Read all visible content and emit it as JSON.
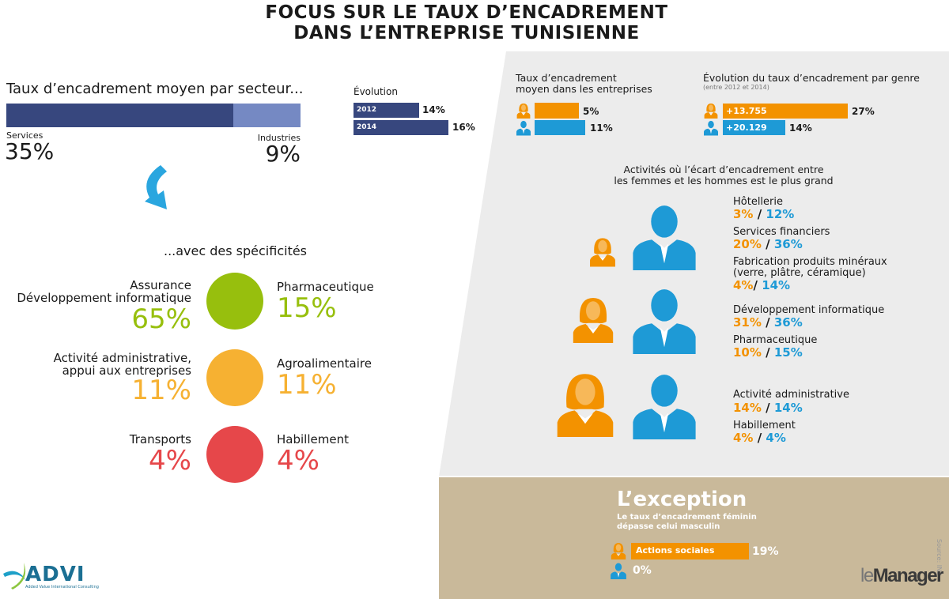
{
  "title": {
    "line1": "FOCUS SUR LE TAUX D’ENCADREMENT",
    "line2": "DANS L’ENTREPRISE TUNISIENNE"
  },
  "colors": {
    "navy": "#37477e",
    "light_navy": "#7589c3",
    "female": "#f39200",
    "male": "#1e9ad6",
    "green": "#97bf0d",
    "yellow": "#f6b132",
    "red": "#e6474a",
    "panel": "#ececec",
    "exception_bg": "#c9b99a"
  },
  "sector": {
    "heading": "Taux d’encadrement moyen par secteur...",
    "services_label": "Services",
    "services_value": "35%",
    "industries_label": "Industries",
    "industries_value": "9%"
  },
  "evolution": {
    "heading": "Évolution",
    "rows": [
      {
        "year": "2012",
        "value": "14%"
      },
      {
        "year": "2014",
        "value": "16%"
      }
    ]
  },
  "specifics": {
    "heading": "...avec des spécificités",
    "rows": [
      {
        "left_label": "Assurance\nDéveloppement informatique",
        "left_value": "65%",
        "right_label": "Pharmaceutique",
        "right_value": "15%",
        "color": "#97bf0d"
      },
      {
        "left_label": "Activité administrative,\nappui aux entreprises",
        "left_value": "11%",
        "right_label": "Agroalimentaire",
        "right_value": "11%",
        "color": "#f6b132"
      },
      {
        "left_label": "Transports",
        "left_value": "4%",
        "right_label": "Habillement",
        "right_value": "4%",
        "color": "#e6474a"
      }
    ]
  },
  "average": {
    "heading": "Taux d’encadrement\nmoyen dans les entreprises",
    "female": "5%",
    "male": "11%"
  },
  "gender_evolution": {
    "heading": "Évolution du taux d’encadrement par genre",
    "subheading": "(entre 2012 et 2014)",
    "female_delta": "+13.755",
    "female_pct": "27%",
    "male_delta": "+20.129",
    "male_pct": "14%"
  },
  "gap": {
    "heading": "Activités où l’écart d’encadrement entre\nles femmes et les hommes est le plus grand",
    "sep": "/",
    "items": [
      {
        "label": "Hôtellerie",
        "female": "3%",
        "male": "12%"
      },
      {
        "label": "Services financiers",
        "female": "20%",
        "male": "36%"
      },
      {
        "label": "Fabrication produits minéraux\n(verre, plâtre, céramique)",
        "female": "4%",
        "male": "14%"
      },
      {
        "label": "Développement informatique",
        "female": "31%",
        "male": "36%"
      },
      {
        "label": "Pharmaceutique",
        "female": "10%",
        "male": "15%"
      },
      {
        "label": "Activité administrative",
        "female": "14%",
        "male": "14%"
      },
      {
        "label": "Habillement",
        "female": "4%",
        "male": "4%"
      }
    ]
  },
  "exception": {
    "title": "L’exception",
    "subtitle": "Le taux d’encadrement féminin\ndépasse celui masculin",
    "bar_label": "Actions sociales",
    "female": "19%",
    "male": "0%"
  },
  "source": "Source: INS",
  "logos": {
    "advi": "ADVI",
    "advi_tagline": "Added Value International Consulting",
    "manager_le": "le",
    "manager": "Manager"
  },
  "chart_data": [
    {
      "type": "bar",
      "title": "Taux d’encadrement moyen par secteur...",
      "categories": [
        "Services",
        "Industries"
      ],
      "values": [
        35,
        9
      ],
      "unit": "%"
    },
    {
      "type": "bar",
      "title": "Évolution",
      "categories": [
        "2012",
        "2014"
      ],
      "values": [
        14,
        16
      ],
      "unit": "%"
    },
    {
      "type": "bar",
      "title": "Taux d’encadrement moyen dans les entreprises",
      "categories": [
        "Femmes",
        "Hommes"
      ],
      "values": [
        5,
        11
      ],
      "unit": "%"
    },
    {
      "type": "bar",
      "title": "Évolution du taux d’encadrement par genre",
      "categories": [
        "Femmes",
        "Hommes"
      ],
      "values": [
        27,
        14
      ],
      "labels": [
        "+13.755",
        "+20.129"
      ],
      "unit": "%"
    },
    {
      "type": "bar",
      "title": "L’exception",
      "categories": [
        "Actions sociales femmes",
        "Actions sociales hommes"
      ],
      "values": [
        19,
        0
      ],
      "unit": "%"
    }
  ]
}
